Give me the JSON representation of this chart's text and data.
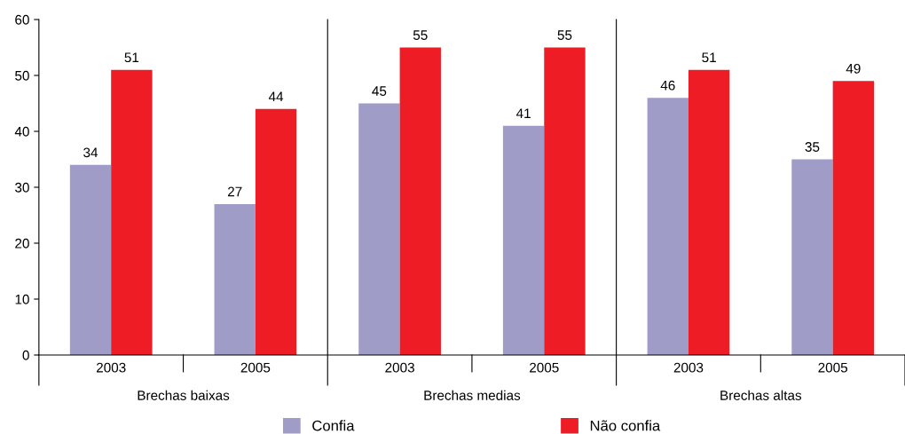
{
  "chart_data": {
    "type": "bar",
    "categories": [
      "2003",
      "2005",
      "2003",
      "2005",
      "2003",
      "2005"
    ],
    "series": [
      {
        "name": "Confia",
        "color": "#a09cc8",
        "values": [
          34,
          27,
          45,
          41,
          46,
          35
        ]
      },
      {
        "name": "Não confia",
        "color": "#ee1c25",
        "values": [
          51,
          44,
          55,
          55,
          51,
          49
        ]
      }
    ],
    "annotations": [
      "Brechas baixas",
      "Brechas medias",
      "Brechas altas"
    ],
    "ylim": [
      0,
      60
    ],
    "yticks": [
      0,
      10,
      20,
      30,
      40,
      50,
      60
    ],
    "data_labels": true,
    "legend": "bottom",
    "grid": false
  }
}
